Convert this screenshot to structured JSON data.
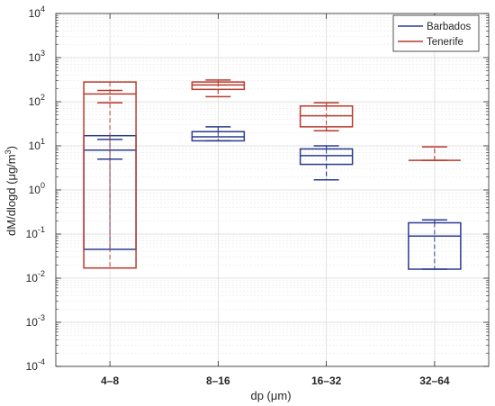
{
  "chart_data": {
    "type": "box",
    "title": "",
    "xlabel": "dp (μm)",
    "ylabel": "dM/dlogd (μg/m",
    "ylabel_unit_exponent": "3",
    "ylabel_close": ")",
    "y_scale": "log",
    "ylim": [
      0.0001,
      10000
    ],
    "y_ticks": [
      {
        "base": "10",
        "exp": "-4"
      },
      {
        "base": "10",
        "exp": "-3"
      },
      {
        "base": "10",
        "exp": "-2"
      },
      {
        "base": "10",
        "exp": "-1"
      },
      {
        "base": "10",
        "exp": "0"
      },
      {
        "base": "10",
        "exp": "1"
      },
      {
        "base": "10",
        "exp": "2"
      },
      {
        "base": "10",
        "exp": "3"
      },
      {
        "base": "10",
        "exp": "4"
      }
    ],
    "grid": true,
    "minor_grid": true,
    "legend_position": "top-right",
    "categories": [
      "4–8",
      "8–16",
      "16–32",
      "32–64"
    ],
    "series": [
      {
        "name": "Barbados",
        "color": "#2b3b8f",
        "boxes": [
          {
            "whisker_low": 0.045,
            "q1": 0.045,
            "median": 8,
            "q3": 17,
            "whisker_high": 17,
            "cap_low": 5,
            "cap_high": 14
          },
          {
            "whisker_low": 13,
            "q1": 13,
            "median": 16,
            "q3": 21,
            "whisker_high": 27,
            "cap_low": 13,
            "cap_high": 27
          },
          {
            "whisker_low": 1.7,
            "q1": 3.8,
            "median": 6,
            "q3": 8.5,
            "whisker_high": 10,
            "cap_low": 1.7,
            "cap_high": 10
          },
          {
            "whisker_low": 0.016,
            "q1": 0.016,
            "median": 0.09,
            "q3": 0.18,
            "whisker_high": 0.21,
            "cap_low": 0.016,
            "cap_high": 0.21
          }
        ]
      },
      {
        "name": "Tenerife",
        "color": "#b83a2e",
        "boxes": [
          {
            "whisker_low": 0.017,
            "q1": 0.017,
            "median": 150,
            "q3": 280,
            "whisker_high": 280,
            "cap_low": 95,
            "cap_high": 180
          },
          {
            "whisker_low": 130,
            "q1": 190,
            "median": 240,
            "q3": 280,
            "whisker_high": 310,
            "cap_low": 130,
            "cap_high": 310
          },
          {
            "whisker_low": 22,
            "q1": 27,
            "median": 48,
            "q3": 80,
            "whisker_high": 95,
            "cap_low": 22,
            "cap_high": 95
          },
          {
            "whisker_low": 4.7,
            "q1": 4.7,
            "median": 4.7,
            "q3": 4.7,
            "whisker_high": 9.5,
            "cap_low": 4.7,
            "cap_high": 9.5
          }
        ]
      }
    ]
  }
}
